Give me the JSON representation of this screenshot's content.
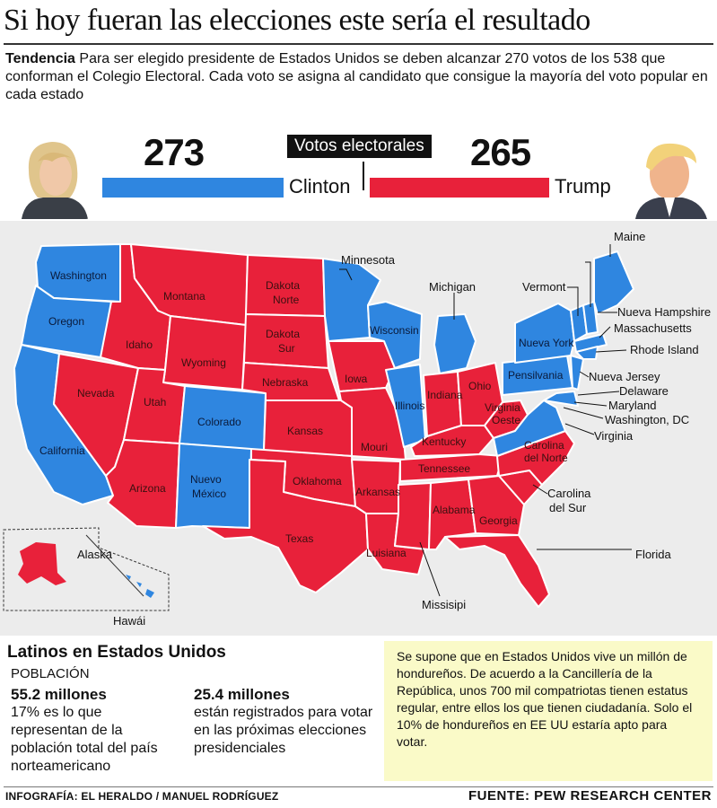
{
  "title": "Si hoy fueran las elecciones este sería el resultado",
  "intro": {
    "bold": "Tendencia",
    "text": " Para ser elegido presidente de Estados Unidos se deben alcanzar 270 votos de los 538 que conforman el Colegio Electoral.  Cada voto se asigna al candidato que consigue la mayoría del voto popular en cada estado"
  },
  "scoreboard": {
    "label": "Votos electorales",
    "clinton": {
      "votes": "273",
      "name": "Clinton",
      "color": "#2f86e0"
    },
    "trump": {
      "votes": "265",
      "name": "Trump",
      "color": "#e8213a"
    }
  },
  "colors": {
    "blue": "#2f86e0",
    "red": "#e8213a",
    "map_bg": "#ececec",
    "note_bg": "#fafac8"
  },
  "map": {
    "states": {
      "washington": "Washington",
      "oregon": "Oregon",
      "california": "California",
      "nevada": "Nevada",
      "idaho": "Idaho",
      "montana": "Montana",
      "wyoming": "Wyoming",
      "utah": "Utah",
      "arizona": "Arizona",
      "colorado": "Colorado",
      "nuevo_mexico_1": "Nuevo",
      "nuevo_mexico_2": "México",
      "dakota_norte_1": "Dakota",
      "dakota_norte_2": "Norte",
      "dakota_sur_1": "Dakota",
      "dakota_sur_2": "Sur",
      "nebraska": "Nebraska",
      "kansas": "Kansas",
      "oklahoma": "Oklahoma",
      "texas": "Texas",
      "iowa": "Iowa",
      "missouri": "Mouri",
      "arkansas": "Arkansas",
      "louisiana": "Luisiana",
      "wisconsin": "Wisconsin",
      "illinois": "Illinois",
      "indiana": "Indiana",
      "ohio": "Ohio",
      "kentucky": "Kentucky",
      "tennessee": "Tennessee",
      "alabama": "Alabama",
      "georgia": "Georgia",
      "virginia_oeste_1": "Virginia",
      "virginia_oeste_2": "Oeste",
      "carolina_norte_1": "Carolina",
      "carolina_norte_2": "del Norte",
      "nueva_york": "Nueva York",
      "pensilvania": "Pensilvania"
    },
    "callouts": {
      "maine": "Maine",
      "minnesota": "Minnesota",
      "michigan": "Michigan",
      "vermont": "Vermont",
      "nueva_hampshire": "Nueva Hampshire",
      "massachusetts": "Massachusetts",
      "rhode_island": "Rhode Island",
      "nueva_jersey": "Nueva Jersey",
      "delaware": "Delaware",
      "maryland": "Maryland",
      "washington_dc": "Washington, DC",
      "virginia": "Virginia",
      "carolina_sur_1": "Carolina",
      "carolina_sur_2": "del Sur",
      "florida": "Florida",
      "misisipi": "Missisipi",
      "alaska": "Alaska",
      "hawai": "Hawái"
    }
  },
  "latinos": {
    "title": "Latinos en Estados Unidos",
    "population_label": "POBLACIÓN",
    "stat1_value": "55.2 millones",
    "stat1_text": "17% es lo que representan de la población total del país norteamericano",
    "stat2_value": "25.4 millones",
    "stat2_text": "están registrados para votar en las próximas elecciones presidenciales"
  },
  "note": "Se supone que en Estados Unidos vive un millón de hondureños. De acuerdo a la Cancillería de la República, unos 700 mil compatriotas tienen estatus regular, entre ellos los que tienen ciudadanía. Solo el 10% de hondureños en EE UU estaría apto para votar.",
  "credit": "INFOGRAFÍA: EL HERALDO / MANUEL RODRÍGUEZ",
  "source": "FUENTE: PEW RESEARCH CENTER"
}
